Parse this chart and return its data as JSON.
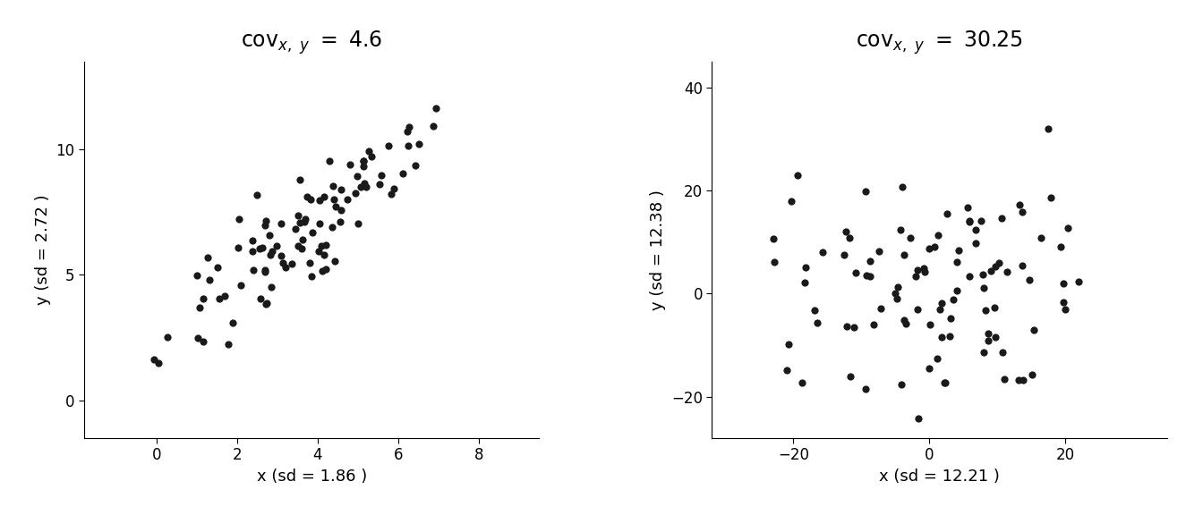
{
  "plot1": {
    "xlabel": "x (sd = 1.86 )",
    "ylabel": "y (sd = 2.72 )",
    "xlim": [
      -1.8,
      9.5
    ],
    "ylim": [
      -1.5,
      13.5
    ],
    "xticks": [
      0,
      2,
      4,
      6,
      8
    ],
    "yticks": [
      0,
      5,
      10
    ],
    "sd_x": 1.86,
    "sd_y": 2.72,
    "cov": 4.6,
    "mean_x": 3.5,
    "mean_y": 6.5,
    "n": 100,
    "seed": 42,
    "title_cov": "4.6"
  },
  "plot2": {
    "xlabel": "x (sd = 12.21 )",
    "ylabel": "y (sd = 12.38 )",
    "xlim": [
      -32,
      35
    ],
    "ylim": [
      -28,
      45
    ],
    "xticks": [
      -20,
      0,
      20
    ],
    "yticks": [
      -20,
      0,
      20,
      40
    ],
    "sd_x": 12.21,
    "sd_y": 12.38,
    "cov": 30.25,
    "mean_x": 0,
    "mean_y": 0,
    "n": 100,
    "seed": 42,
    "title_cov": "30.25"
  },
  "dot_color": "#1a1a1a",
  "dot_size": 35,
  "bg_color": "#ffffff",
  "title_fontsize": 17,
  "label_fontsize": 13,
  "tick_fontsize": 12
}
